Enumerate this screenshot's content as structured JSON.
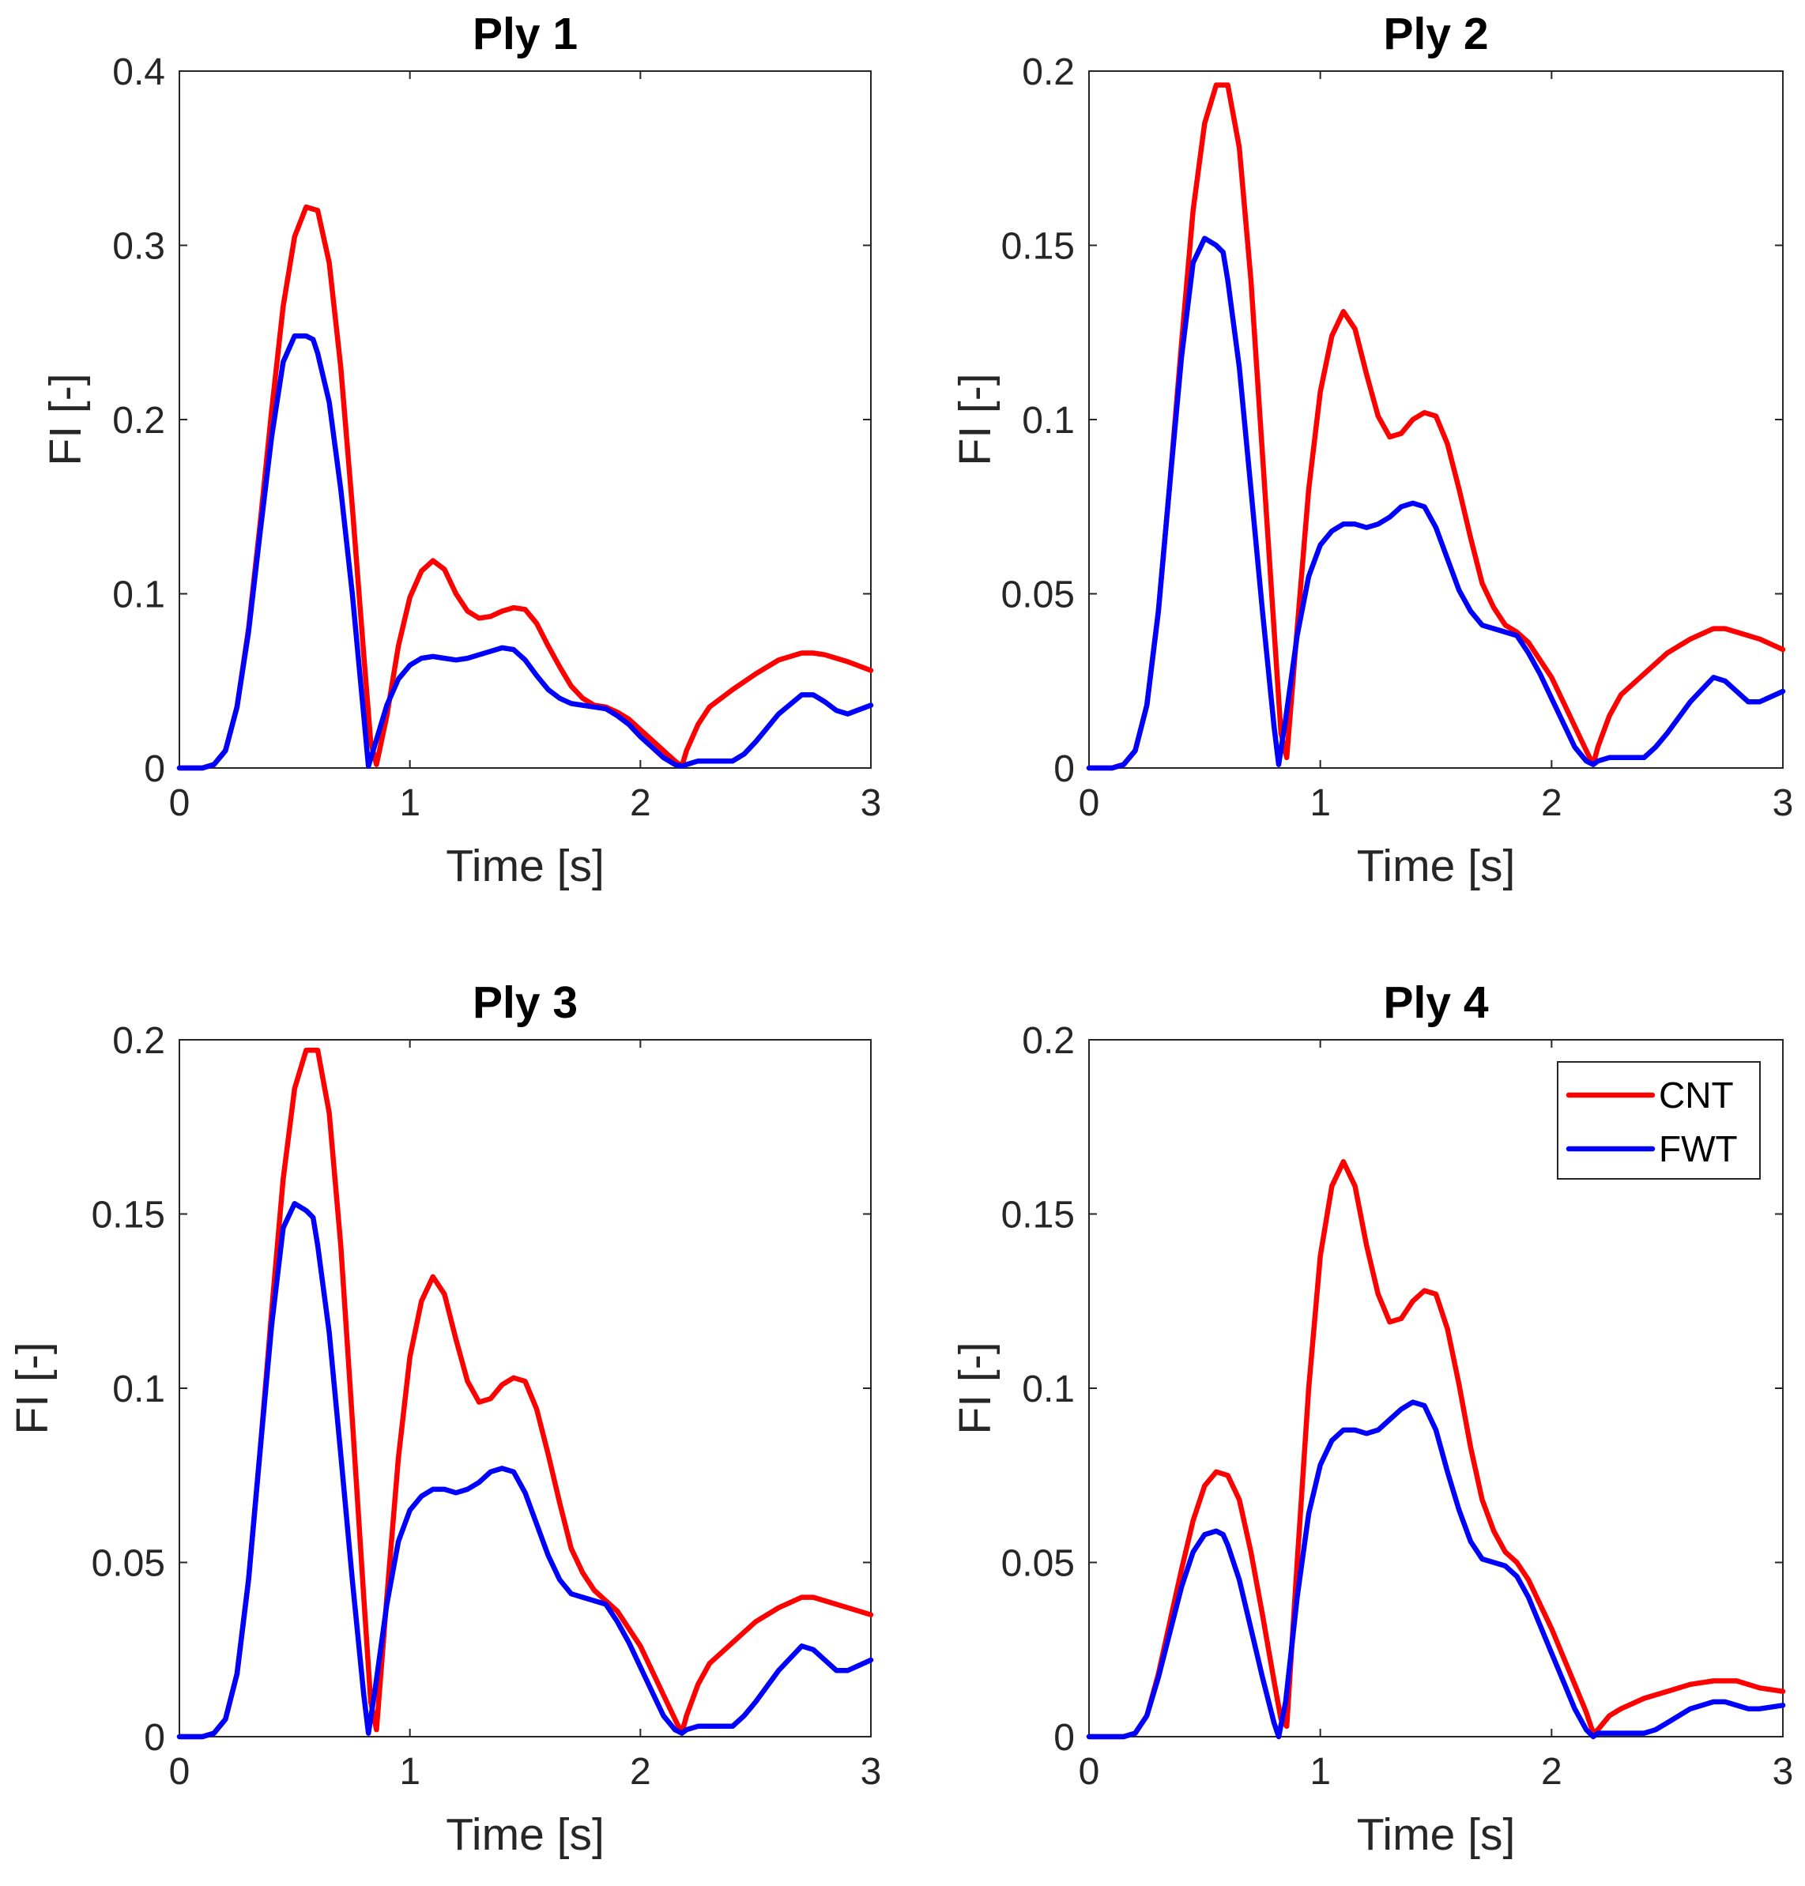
{
  "figure": {
    "colors": {
      "CNT": "#ff0000",
      "FWT": "#0000ff",
      "axis": "#262626"
    },
    "legend": {
      "location": "top-right",
      "panel": 3,
      "entries": [
        "CNT",
        "FWT"
      ]
    }
  },
  "chart_data": [
    {
      "type": "line",
      "title": "Ply 1",
      "xlabel": "Time [s]",
      "ylabel": "FI [-]",
      "xlim": [
        0,
        3
      ],
      "ylim": [
        0,
        0.4
      ],
      "xticks": [
        "0",
        "1",
        "2",
        "3"
      ],
      "yticks": [
        "0",
        "0.1",
        "0.2",
        "0.3",
        "0.4"
      ],
      "grid": false,
      "series": [
        {
          "name": "CNT",
          "x": [
            0,
            0.1,
            0.15,
            0.2,
            0.25,
            0.3,
            0.35,
            0.4,
            0.45,
            0.5,
            0.55,
            0.6,
            0.65,
            0.7,
            0.75,
            0.8,
            0.83,
            0.855,
            0.9,
            0.95,
            1.0,
            1.05,
            1.1,
            1.15,
            1.2,
            1.25,
            1.3,
            1.35,
            1.4,
            1.45,
            1.5,
            1.55,
            1.6,
            1.65,
            1.7,
            1.75,
            1.8,
            1.85,
            1.9,
            1.95,
            2.0,
            2.05,
            2.1,
            2.15,
            2.18,
            2.2,
            2.25,
            2.3,
            2.4,
            2.5,
            2.6,
            2.7,
            2.75,
            2.8,
            2.9,
            3.0
          ],
          "y": [
            0,
            0,
            0.002,
            0.01,
            0.035,
            0.08,
            0.14,
            0.205,
            0.265,
            0.305,
            0.322,
            0.32,
            0.29,
            0.23,
            0.15,
            0.065,
            0.015,
            0.002,
            0.03,
            0.07,
            0.098,
            0.113,
            0.119,
            0.114,
            0.1,
            0.09,
            0.086,
            0.087,
            0.09,
            0.092,
            0.091,
            0.083,
            0.07,
            0.058,
            0.047,
            0.04,
            0.036,
            0.035,
            0.032,
            0.028,
            0.022,
            0.016,
            0.01,
            0.004,
            0.001,
            0.01,
            0.025,
            0.035,
            0.045,
            0.054,
            0.062,
            0.066,
            0.066,
            0.065,
            0.061,
            0.056
          ]
        },
        {
          "name": "FWT",
          "x": [
            0,
            0.1,
            0.15,
            0.2,
            0.25,
            0.3,
            0.35,
            0.4,
            0.45,
            0.5,
            0.55,
            0.58,
            0.6,
            0.65,
            0.7,
            0.75,
            0.8,
            0.82,
            0.85,
            0.9,
            0.95,
            1.0,
            1.05,
            1.1,
            1.15,
            1.2,
            1.25,
            1.3,
            1.35,
            1.4,
            1.45,
            1.5,
            1.55,
            1.6,
            1.65,
            1.7,
            1.75,
            1.8,
            1.85,
            1.9,
            1.95,
            2.0,
            2.05,
            2.1,
            2.15,
            2.18,
            2.2,
            2.25,
            2.3,
            2.4,
            2.45,
            2.5,
            2.6,
            2.7,
            2.75,
            2.8,
            2.85,
            2.9,
            3.0
          ],
          "y": [
            0,
            0,
            0.002,
            0.01,
            0.035,
            0.078,
            0.135,
            0.19,
            0.233,
            0.248,
            0.248,
            0.246,
            0.238,
            0.21,
            0.16,
            0.1,
            0.03,
            0.001,
            0.014,
            0.036,
            0.051,
            0.059,
            0.063,
            0.064,
            0.063,
            0.062,
            0.063,
            0.065,
            0.067,
            0.069,
            0.068,
            0.062,
            0.053,
            0.045,
            0.04,
            0.037,
            0.036,
            0.035,
            0.034,
            0.03,
            0.025,
            0.018,
            0.012,
            0.006,
            0.002,
            0.001,
            0.002,
            0.004,
            0.004,
            0.004,
            0.008,
            0.015,
            0.031,
            0.042,
            0.042,
            0.038,
            0.033,
            0.031,
            0.036
          ]
        }
      ]
    },
    {
      "type": "line",
      "title": "Ply 2",
      "xlabel": "Time [s]",
      "ylabel": "FI [-]",
      "xlim": [
        0,
        3
      ],
      "ylim": [
        0,
        0.2
      ],
      "xticks": [
        "0",
        "1",
        "2",
        "3"
      ],
      "yticks": [
        "0",
        "0.05",
        "0.1",
        "0.15",
        "0.2"
      ],
      "grid": false,
      "series": [
        {
          "name": "CNT",
          "x": [
            0,
            0.1,
            0.15,
            0.2,
            0.25,
            0.3,
            0.35,
            0.4,
            0.45,
            0.5,
            0.55,
            0.6,
            0.65,
            0.7,
            0.75,
            0.8,
            0.83,
            0.855,
            0.9,
            0.95,
            1.0,
            1.05,
            1.1,
            1.15,
            1.2,
            1.25,
            1.3,
            1.35,
            1.4,
            1.45,
            1.5,
            1.55,
            1.6,
            1.65,
            1.7,
            1.75,
            1.8,
            1.85,
            1.9,
            1.95,
            2.0,
            2.05,
            2.1,
            2.15,
            2.18,
            2.2,
            2.25,
            2.3,
            2.4,
            2.5,
            2.6,
            2.7,
            2.75,
            2.8,
            2.9,
            3.0
          ],
          "y": [
            0,
            0,
            0.001,
            0.005,
            0.018,
            0.045,
            0.082,
            0.122,
            0.16,
            0.185,
            0.196,
            0.196,
            0.178,
            0.14,
            0.09,
            0.04,
            0.01,
            0.003,
            0.04,
            0.08,
            0.108,
            0.124,
            0.131,
            0.126,
            0.113,
            0.101,
            0.095,
            0.096,
            0.1,
            0.102,
            0.101,
            0.093,
            0.08,
            0.066,
            0.053,
            0.046,
            0.041,
            0.039,
            0.036,
            0.031,
            0.026,
            0.019,
            0.012,
            0.005,
            0.001,
            0.006,
            0.015,
            0.021,
            0.027,
            0.033,
            0.037,
            0.04,
            0.04,
            0.039,
            0.037,
            0.034
          ]
        },
        {
          "name": "FWT",
          "x": [
            0,
            0.1,
            0.15,
            0.2,
            0.25,
            0.3,
            0.35,
            0.4,
            0.45,
            0.5,
            0.55,
            0.58,
            0.6,
            0.65,
            0.7,
            0.75,
            0.8,
            0.82,
            0.85,
            0.9,
            0.95,
            1.0,
            1.05,
            1.1,
            1.15,
            1.2,
            1.25,
            1.3,
            1.35,
            1.4,
            1.45,
            1.5,
            1.55,
            1.6,
            1.65,
            1.7,
            1.75,
            1.8,
            1.85,
            1.9,
            1.95,
            2.0,
            2.05,
            2.1,
            2.15,
            2.18,
            2.2,
            2.25,
            2.3,
            2.4,
            2.45,
            2.5,
            2.6,
            2.7,
            2.75,
            2.8,
            2.85,
            2.9,
            3.0
          ],
          "y": [
            0,
            0,
            0.001,
            0.005,
            0.018,
            0.045,
            0.082,
            0.118,
            0.145,
            0.152,
            0.15,
            0.148,
            0.14,
            0.115,
            0.08,
            0.045,
            0.012,
            0.001,
            0.014,
            0.038,
            0.055,
            0.064,
            0.068,
            0.07,
            0.07,
            0.069,
            0.07,
            0.072,
            0.075,
            0.076,
            0.075,
            0.069,
            0.06,
            0.051,
            0.045,
            0.041,
            0.04,
            0.039,
            0.038,
            0.033,
            0.027,
            0.02,
            0.013,
            0.006,
            0.002,
            0.001,
            0.002,
            0.003,
            0.003,
            0.003,
            0.006,
            0.01,
            0.019,
            0.026,
            0.025,
            0.022,
            0.019,
            0.019,
            0.022
          ]
        }
      ]
    },
    {
      "type": "line",
      "title": "Ply 3",
      "xlabel": "Time [s]",
      "ylabel": "FI [-]",
      "xlim": [
        0,
        3
      ],
      "ylim": [
        0,
        0.2
      ],
      "xticks": [
        "0",
        "1",
        "2",
        "3"
      ],
      "yticks": [
        "0",
        "0.05",
        "0.1",
        "0.15",
        "0.2"
      ],
      "grid": false,
      "series": [
        {
          "name": "CNT",
          "x": [
            0,
            0.1,
            0.15,
            0.2,
            0.25,
            0.3,
            0.35,
            0.4,
            0.45,
            0.5,
            0.55,
            0.6,
            0.65,
            0.7,
            0.75,
            0.8,
            0.83,
            0.855,
            0.9,
            0.95,
            1.0,
            1.05,
            1.1,
            1.15,
            1.2,
            1.25,
            1.3,
            1.35,
            1.4,
            1.45,
            1.5,
            1.55,
            1.6,
            1.65,
            1.7,
            1.75,
            1.8,
            1.85,
            1.9,
            1.95,
            2.0,
            2.05,
            2.1,
            2.15,
            2.18,
            2.2,
            2.25,
            2.3,
            2.4,
            2.5,
            2.6,
            2.7,
            2.75,
            2.8,
            2.9,
            3.0
          ],
          "y": [
            0,
            0,
            0.001,
            0.005,
            0.018,
            0.045,
            0.082,
            0.122,
            0.16,
            0.186,
            0.197,
            0.197,
            0.179,
            0.141,
            0.091,
            0.04,
            0.01,
            0.002,
            0.04,
            0.08,
            0.109,
            0.125,
            0.132,
            0.127,
            0.114,
            0.102,
            0.096,
            0.097,
            0.101,
            0.103,
            0.102,
            0.094,
            0.081,
            0.067,
            0.054,
            0.047,
            0.042,
            0.039,
            0.036,
            0.031,
            0.026,
            0.019,
            0.012,
            0.005,
            0.001,
            0.006,
            0.015,
            0.021,
            0.027,
            0.033,
            0.037,
            0.04,
            0.04,
            0.039,
            0.037,
            0.035
          ]
        },
        {
          "name": "FWT",
          "x": [
            0,
            0.1,
            0.15,
            0.2,
            0.25,
            0.3,
            0.35,
            0.4,
            0.45,
            0.5,
            0.55,
            0.58,
            0.6,
            0.65,
            0.7,
            0.75,
            0.8,
            0.82,
            0.85,
            0.9,
            0.95,
            1.0,
            1.05,
            1.1,
            1.15,
            1.2,
            1.25,
            1.3,
            1.35,
            1.4,
            1.45,
            1.5,
            1.55,
            1.6,
            1.65,
            1.7,
            1.75,
            1.8,
            1.85,
            1.9,
            1.95,
            2.0,
            2.05,
            2.1,
            2.15,
            2.18,
            2.2,
            2.25,
            2.3,
            2.4,
            2.45,
            2.5,
            2.6,
            2.7,
            2.75,
            2.8,
            2.85,
            2.9,
            3.0
          ],
          "y": [
            0,
            0,
            0.001,
            0.005,
            0.018,
            0.045,
            0.082,
            0.118,
            0.146,
            0.153,
            0.151,
            0.149,
            0.141,
            0.116,
            0.081,
            0.045,
            0.012,
            0.001,
            0.014,
            0.038,
            0.056,
            0.065,
            0.069,
            0.071,
            0.071,
            0.07,
            0.071,
            0.073,
            0.076,
            0.077,
            0.076,
            0.07,
            0.061,
            0.052,
            0.045,
            0.041,
            0.04,
            0.039,
            0.038,
            0.033,
            0.027,
            0.02,
            0.013,
            0.006,
            0.002,
            0.001,
            0.002,
            0.003,
            0.003,
            0.003,
            0.006,
            0.01,
            0.019,
            0.026,
            0.025,
            0.022,
            0.019,
            0.019,
            0.022
          ]
        }
      ]
    },
    {
      "type": "line",
      "title": "Ply 4",
      "xlabel": "Time [s]",
      "ylabel": "FI [-]",
      "xlim": [
        0,
        3
      ],
      "ylim": [
        0,
        0.2
      ],
      "xticks": [
        "0",
        "1",
        "2",
        "3"
      ],
      "yticks": [
        "0",
        "0.05",
        "0.1",
        "0.15",
        "0.2"
      ],
      "grid": false,
      "series": [
        {
          "name": "CNT",
          "x": [
            0,
            0.1,
            0.15,
            0.2,
            0.25,
            0.3,
            0.35,
            0.4,
            0.45,
            0.5,
            0.55,
            0.6,
            0.65,
            0.7,
            0.75,
            0.8,
            0.83,
            0.855,
            0.9,
            0.95,
            1.0,
            1.05,
            1.1,
            1.15,
            1.2,
            1.25,
            1.3,
            1.35,
            1.4,
            1.45,
            1.5,
            1.55,
            1.6,
            1.65,
            1.7,
            1.75,
            1.8,
            1.85,
            1.9,
            1.95,
            2.0,
            2.05,
            2.1,
            2.15,
            2.18,
            2.2,
            2.25,
            2.3,
            2.4,
            2.5,
            2.6,
            2.7,
            2.75,
            2.8,
            2.9,
            3.0
          ],
          "y": [
            0,
            0,
            0,
            0.001,
            0.006,
            0.018,
            0.033,
            0.048,
            0.062,
            0.072,
            0.076,
            0.075,
            0.068,
            0.053,
            0.035,
            0.016,
            0.005,
            0.003,
            0.05,
            0.1,
            0.138,
            0.158,
            0.165,
            0.158,
            0.141,
            0.127,
            0.119,
            0.12,
            0.125,
            0.128,
            0.127,
            0.117,
            0.101,
            0.083,
            0.068,
            0.059,
            0.053,
            0.05,
            0.045,
            0.038,
            0.031,
            0.023,
            0.015,
            0.007,
            0.001,
            0.002,
            0.006,
            0.008,
            0.011,
            0.013,
            0.015,
            0.016,
            0.016,
            0.016,
            0.014,
            0.013
          ]
        },
        {
          "name": "FWT",
          "x": [
            0,
            0.1,
            0.15,
            0.2,
            0.25,
            0.3,
            0.35,
            0.4,
            0.45,
            0.5,
            0.55,
            0.58,
            0.6,
            0.65,
            0.7,
            0.75,
            0.8,
            0.82,
            0.85,
            0.9,
            0.95,
            1.0,
            1.05,
            1.1,
            1.15,
            1.2,
            1.25,
            1.3,
            1.35,
            1.4,
            1.45,
            1.5,
            1.55,
            1.6,
            1.65,
            1.7,
            1.75,
            1.8,
            1.85,
            1.9,
            1.95,
            2.0,
            2.05,
            2.1,
            2.15,
            2.18,
            2.2,
            2.25,
            2.3,
            2.4,
            2.45,
            2.5,
            2.6,
            2.7,
            2.75,
            2.8,
            2.85,
            2.9,
            3.0
          ],
          "y": [
            0,
            0,
            0,
            0.001,
            0.006,
            0.017,
            0.03,
            0.043,
            0.053,
            0.058,
            0.059,
            0.058,
            0.055,
            0.045,
            0.031,
            0.017,
            0.004,
            0,
            0.01,
            0.04,
            0.064,
            0.078,
            0.085,
            0.088,
            0.088,
            0.087,
            0.088,
            0.091,
            0.094,
            0.096,
            0.095,
            0.088,
            0.076,
            0.065,
            0.056,
            0.051,
            0.05,
            0.049,
            0.046,
            0.04,
            0.032,
            0.024,
            0.016,
            0.008,
            0.002,
            0,
            0.001,
            0.001,
            0.001,
            0.001,
            0.002,
            0.004,
            0.008,
            0.01,
            0.01,
            0.009,
            0.008,
            0.008,
            0.009
          ]
        }
      ]
    }
  ]
}
